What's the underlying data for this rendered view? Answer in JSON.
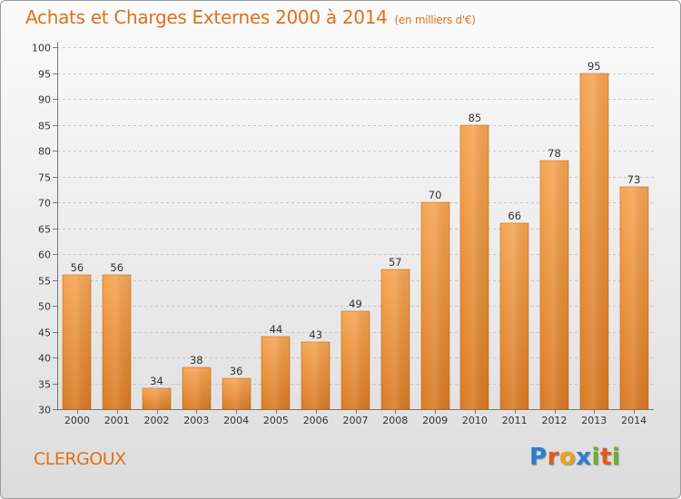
{
  "header": {
    "title": "Achats et Charges Externes 2000 à 2014",
    "subtitle": "(en milliers d'€)"
  },
  "footer": {
    "commune": "CLERGOUX",
    "logo_text": "Proxiti",
    "logo_letters": [
      {
        "ch": "P",
        "color": "#2a7fd0"
      },
      {
        "ch": "r",
        "color": "#e05a1a"
      },
      {
        "ch": "o",
        "color": "#f0a020"
      },
      {
        "ch": "x",
        "color": "#2a7fd0"
      },
      {
        "ch": "i",
        "color": "#6ab02a"
      },
      {
        "ch": "t",
        "color": "#e05a1a"
      },
      {
        "ch": "i",
        "color": "#6ab02a"
      }
    ]
  },
  "colors": {
    "accent": "#e0701a",
    "bar_top": "#f6a552",
    "bar_bottom": "#d97a22",
    "bar_stroke": "#c86a18"
  },
  "chart_data": {
    "type": "bar",
    "categories": [
      "2000",
      "2001",
      "2002",
      "2003",
      "2004",
      "2005",
      "2006",
      "2007",
      "2008",
      "2009",
      "2010",
      "2011",
      "2012",
      "2013",
      "2014"
    ],
    "values": [
      56,
      56,
      34,
      38,
      36,
      44,
      43,
      49,
      57,
      70,
      85,
      66,
      78,
      95,
      73
    ],
    "title": "Achats et Charges Externes 2000 à 2014",
    "xlabel": "",
    "ylabel": "",
    "ylim": [
      30,
      100
    ],
    "yticks": [
      30,
      35,
      40,
      45,
      50,
      55,
      60,
      65,
      70,
      75,
      80,
      85,
      90,
      95,
      100
    ],
    "grid": true,
    "legend": "none"
  }
}
